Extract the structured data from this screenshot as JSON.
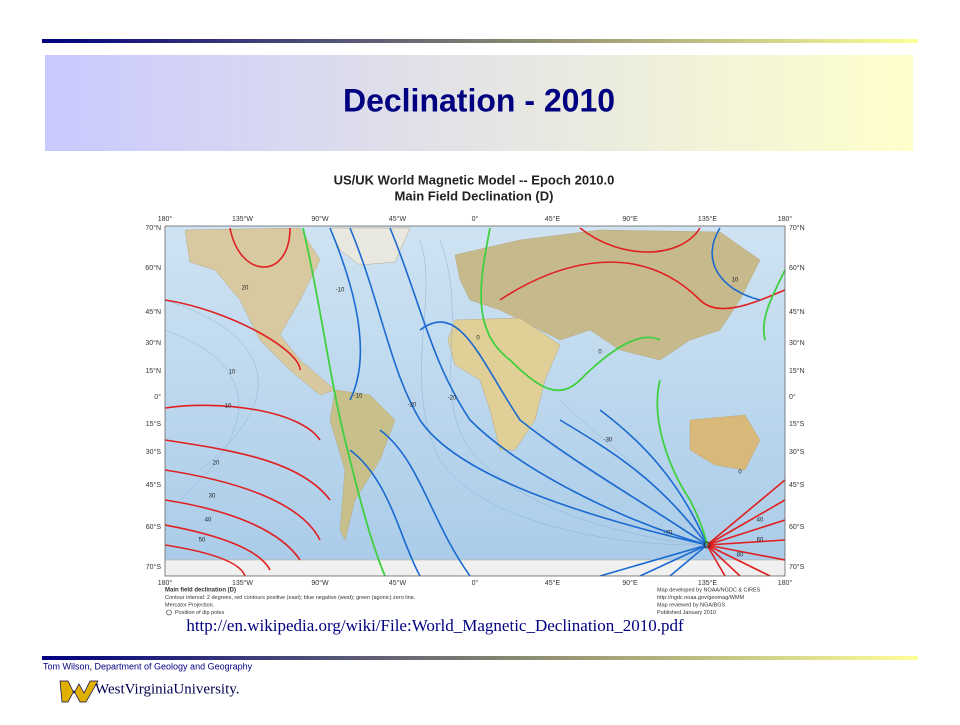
{
  "slide": {
    "title": "Declination - 2010",
    "map": {
      "title_lines": [
        "US/UK World Magnetic Model -- Epoch 2010.0",
        "Main Field Declination (D)"
      ],
      "lon_labels": [
        "180°",
        "135°W",
        "90°W",
        "45°W",
        "0°",
        "45°E",
        "90°E",
        "135°E",
        "180°"
      ],
      "lat_labels": [
        "70°N",
        "60°N",
        "45°N",
        "30°N",
        "15°N",
        "0°",
        "15°S",
        "30°S",
        "45°S",
        "60°S",
        "70°S"
      ],
      "contour_labels": [
        "20",
        "10",
        "10",
        "20",
        "30",
        "40",
        "50",
        "-10",
        "-20",
        "-10",
        "0",
        "0",
        "-20",
        "-30",
        "-70",
        "0",
        "10",
        "40",
        "60",
        "80"
      ],
      "legend_left": [
        "Main field declination (D)",
        "Contour interval: 2 degrees, red contours positive (east); blue negative (west); green (agonic) zero line.",
        "Mercator Projection.",
        "Position of dip poles"
      ],
      "legend_right": [
        "Map developed by NOAA/NGDC & CIRES",
        "http://ngdc.noaa.gov/geomag/WMM",
        "Map reviewed by NGA/BGS",
        "Published January 2010"
      ]
    },
    "source_url": "http://en.wikipedia.org/wiki/File:World_Magnetic_Declination_2010.pdf",
    "footer": {
      "author": "Tom Wilson, Department of Geology and Geography",
      "logo": "WestVirginiaUniversity."
    }
  }
}
